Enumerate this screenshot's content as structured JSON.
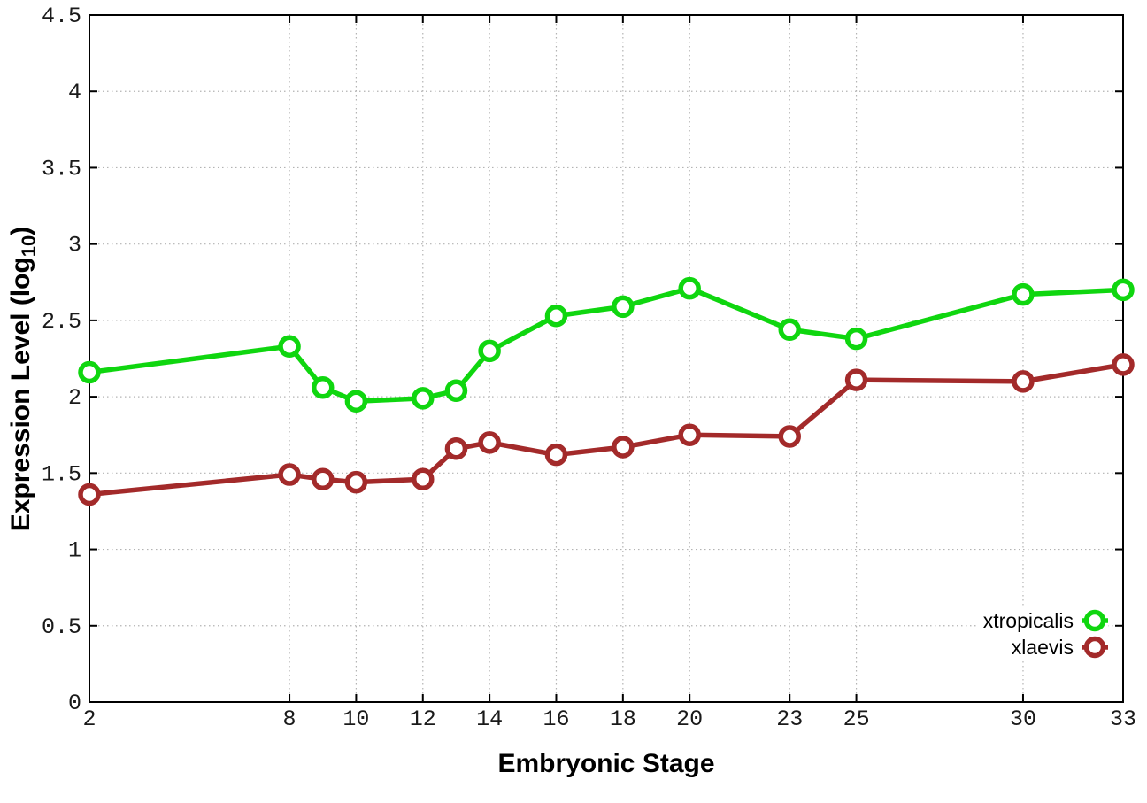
{
  "chart_data": {
    "type": "line",
    "title": "",
    "xlabel": "Embryonic Stage",
    "ylabel": "Expression Level (log10)",
    "ylabel_parts": {
      "main": "Expression Level (log",
      "sub": "10",
      "close": ")"
    },
    "xlim": [
      2,
      33
    ],
    "ylim": [
      0,
      4.5
    ],
    "grid": true,
    "legend_position": "bottom-right-inside",
    "x_ticks": [
      {
        "value": 2,
        "label": "2"
      },
      {
        "value": 8,
        "label": "8"
      },
      {
        "value": 10,
        "label": "10"
      },
      {
        "value": 12,
        "label": "12"
      },
      {
        "value": 14,
        "label": "14"
      },
      {
        "value": 16,
        "label": "16"
      },
      {
        "value": 18,
        "label": "18"
      },
      {
        "value": 20,
        "label": "20"
      },
      {
        "value": 23,
        "label": "23"
      },
      {
        "value": 25,
        "label": "25"
      },
      {
        "value": 30,
        "label": "30"
      },
      {
        "value": 33,
        "label": "33"
      }
    ],
    "y_ticks": [
      {
        "value": 0,
        "label": "0"
      },
      {
        "value": 0.5,
        "label": "0.5"
      },
      {
        "value": 1,
        "label": "1"
      },
      {
        "value": 1.5,
        "label": "1.5"
      },
      {
        "value": 2,
        "label": "2"
      },
      {
        "value": 2.5,
        "label": "2.5"
      },
      {
        "value": 3,
        "label": "3"
      },
      {
        "value": 3.5,
        "label": "3.5"
      },
      {
        "value": 4,
        "label": "4"
      },
      {
        "value": 4.5,
        "label": "4.5"
      }
    ],
    "x": [
      2,
      8,
      9,
      10,
      12,
      13,
      14,
      16,
      18,
      20,
      23,
      25,
      30,
      33
    ],
    "series": [
      {
        "name": "xtropicalis",
        "color": "#0fd60f",
        "marker": "open-circle",
        "values": [
          2.16,
          2.33,
          2.06,
          1.97,
          1.99,
          2.04,
          2.3,
          2.53,
          2.59,
          2.71,
          2.44,
          2.38,
          2.67,
          2.7
        ]
      },
      {
        "name": "xlaevis",
        "color": "#a32a2a",
        "marker": "open-circle",
        "values": [
          1.36,
          1.49,
          1.46,
          1.44,
          1.46,
          1.66,
          1.7,
          1.62,
          1.67,
          1.75,
          1.74,
          2.11,
          2.1,
          2.21
        ]
      }
    ],
    "colors": {
      "axis": "#000000",
      "grid": "#b3b3b3",
      "background": "#ffffff",
      "tick_label": "#1a1a1a"
    }
  }
}
